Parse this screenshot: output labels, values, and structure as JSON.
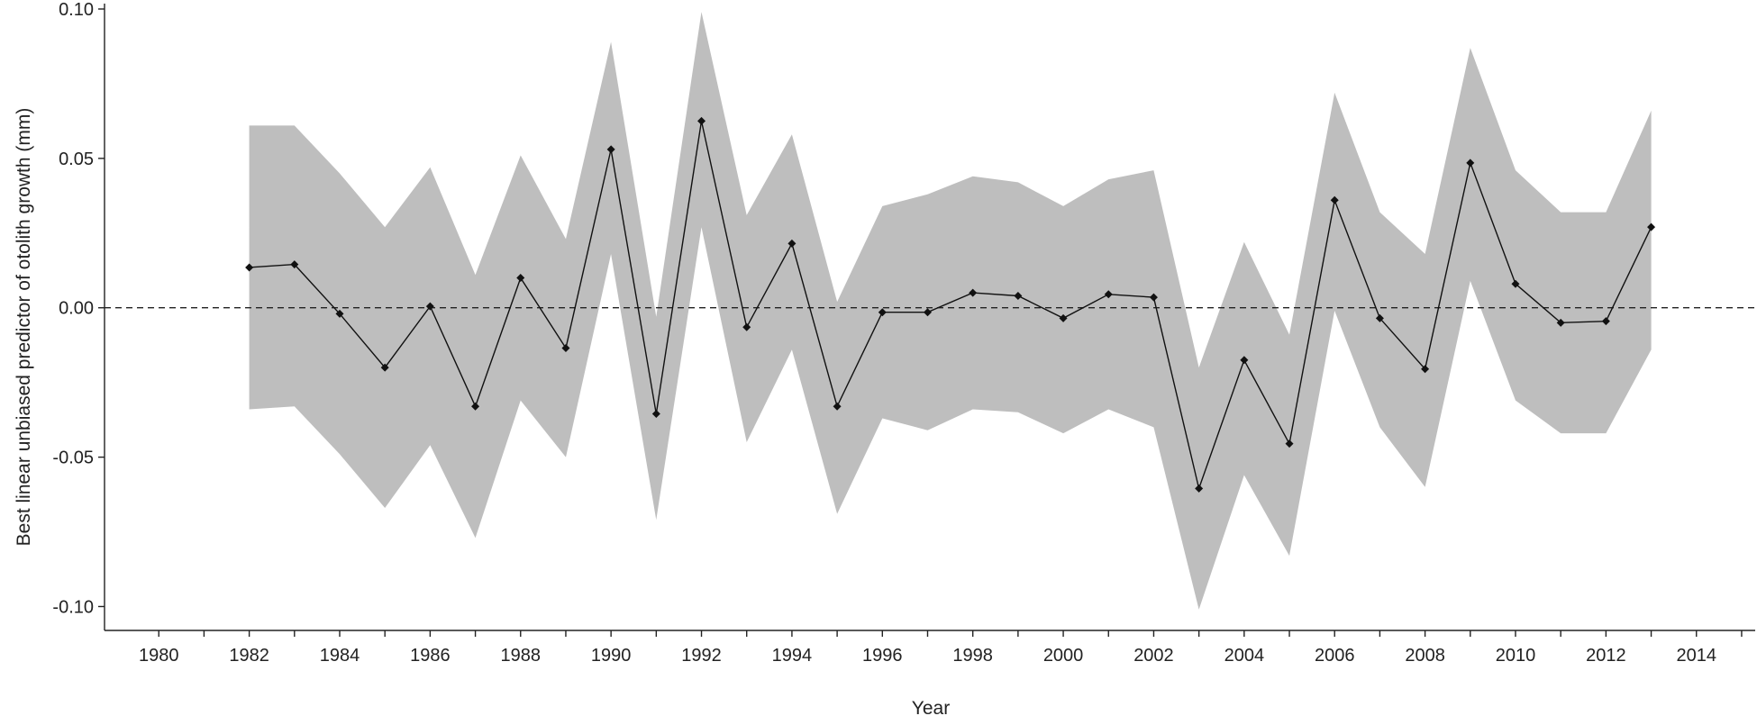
{
  "chart_data": {
    "type": "line",
    "title": "",
    "xlabel": "Year",
    "ylabel": "Best linear unbiased predictor of otolith growth (mm)",
    "xlim": [
      1978.8,
      2015.3
    ],
    "ylim": [
      -0.108,
      0.1
    ],
    "x_ticks": [
      1980,
      1982,
      1984,
      1986,
      1988,
      1990,
      1992,
      1994,
      1996,
      1998,
      2000,
      2002,
      2004,
      2006,
      2008,
      2010,
      2012,
      2014
    ],
    "x_minor_ticks": [
      1981,
      1983,
      1985,
      1987,
      1989,
      1991,
      1993,
      1995,
      1997,
      1999,
      2001,
      2003,
      2005,
      2007,
      2009,
      2011,
      2013,
      2015
    ],
    "x_tick_labels": [
      "1980",
      "1982",
      "1984",
      "1986",
      "1988",
      "1990",
      "1992",
      "1994",
      "1996",
      "1998",
      "2000",
      "2002",
      "2004",
      "2006",
      "2008",
      "2010",
      "2012",
      "2014"
    ],
    "y_ticks": [
      0.1,
      0.05,
      0.0,
      -0.05,
      -0.1
    ],
    "y_tick_labels": [
      "0.10",
      "0.05",
      "0.00",
      "-0.05",
      "-0.10"
    ],
    "reference_line": 0,
    "grid": false,
    "legend": "none",
    "series": [
      {
        "x": [
          1982,
          1983,
          1984,
          1985,
          1986,
          1987,
          1988,
          1989,
          1990,
          1991,
          1992,
          1993,
          1994,
          1995,
          1996,
          1997,
          1998,
          1999,
          2000,
          2001,
          2002,
          2003,
          2004,
          2005,
          2006,
          2007,
          2008,
          2009,
          2010,
          2011,
          2012,
          2013
        ],
        "y": [
          0.0135,
          0.0145,
          -0.002,
          -0.02,
          0.0005,
          -0.033,
          0.01,
          -0.0135,
          0.053,
          -0.0355,
          0.0625,
          -0.0065,
          0.0215,
          -0.033,
          -0.0015,
          -0.0015,
          0.005,
          0.004,
          -0.0035,
          0.0045,
          0.0035,
          -0.0605,
          -0.0175,
          -0.0455,
          0.036,
          -0.0035,
          -0.0205,
          0.0485,
          0.008,
          -0.005,
          -0.0045,
          0.027
        ],
        "lower": [
          -0.034,
          -0.033,
          -0.049,
          -0.067,
          -0.046,
          -0.077,
          -0.031,
          -0.05,
          0.018,
          -0.071,
          0.027,
          -0.045,
          -0.014,
          -0.069,
          -0.037,
          -0.041,
          -0.034,
          -0.035,
          -0.042,
          -0.034,
          -0.04,
          -0.101,
          -0.056,
          -0.083,
          -0.001,
          -0.04,
          -0.06,
          0.009,
          -0.031,
          -0.042,
          -0.042,
          -0.014
        ],
        "upper": [
          0.061,
          0.061,
          0.045,
          0.027,
          0.047,
          0.011,
          0.051,
          0.023,
          0.089,
          -0.003,
          0.099,
          0.031,
          0.058,
          0.002,
          0.034,
          0.038,
          0.044,
          0.042,
          0.034,
          0.043,
          0.046,
          -0.02,
          0.022,
          -0.009,
          0.072,
          0.032,
          0.018,
          0.087,
          0.046,
          0.032,
          0.032,
          0.066
        ]
      }
    ],
    "colors": {
      "ribbon": "#bebebe",
      "line": "#111111",
      "points": "#111111",
      "axis": "#222222",
      "reference_line": "#222222"
    }
  }
}
